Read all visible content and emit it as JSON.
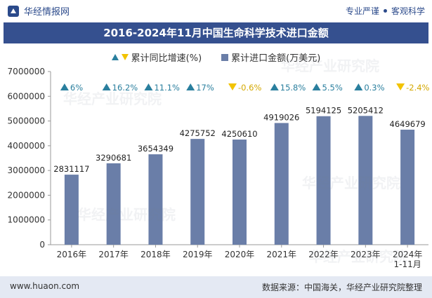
{
  "header": {
    "brand": "华经情报网",
    "tag1": "专业严谨",
    "tag2": "客观科学"
  },
  "footer": {
    "site": "www.huaon.com",
    "source": "数据来源：中国海关，华经产业研究院整理"
  },
  "colors": {
    "bar": "#6a7ea8",
    "up": "#2a7f9e",
    "down": "#f2c300",
    "title_bg": "#35508f"
  },
  "chart_data": {
    "type": "bar",
    "title": "2016-2024年11月中国生命科学技术进口金额",
    "categories": [
      "2016年",
      "2017年",
      "2018年",
      "2019年",
      "2020年",
      "2021年",
      "2022年",
      "2023年",
      "2024年\n1-11月"
    ],
    "series": [
      {
        "name": "累计进口金额(万美元)",
        "type": "bar",
        "values": [
          2831117,
          3290681,
          3654349,
          4275752,
          4250610,
          4919026,
          5194125,
          5205412,
          4649679
        ]
      },
      {
        "name": "累计同比增速(%)",
        "type": "marker",
        "values": [
          6,
          16.2,
          11.1,
          17,
          -0.6,
          15.8,
          5.5,
          0.3,
          -2.4
        ],
        "labels": [
          "6%",
          "16.2%",
          "11.1%",
          "17%",
          "-0.6%",
          "15.8%",
          "5.5%",
          "0.3%",
          "-2.4%"
        ]
      }
    ],
    "value_labels": [
      "2831117",
      "3290681",
      "3654349",
      "4275752",
      "4250610",
      "4919026",
      "5194125",
      "5205412",
      "4649679"
    ],
    "ylim": [
      0,
      7000000
    ],
    "yticks": [
      "0",
      "1000000",
      "2000000",
      "3000000",
      "4000000",
      "5000000",
      "6000000",
      "7000000"
    ],
    "xlabel": "",
    "ylabel": "",
    "legend": "top-center",
    "grid": false
  }
}
